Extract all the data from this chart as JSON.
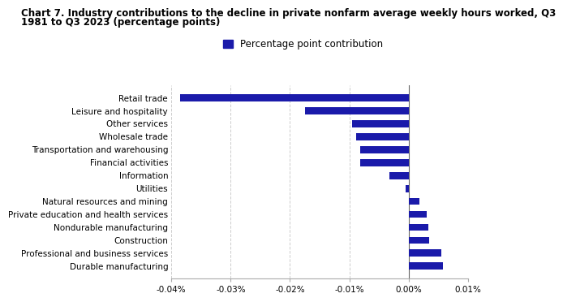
{
  "title_line1": "Chart 7. Industry contributions to the decline in private nonfarm average weekly hours worked, Q3",
  "title_line2": "1981 to Q3 2023 (percentage points)",
  "legend_label": "Percentage point contribution",
  "categories": [
    "Retail trade",
    "Leisure and hospitality",
    "Other services",
    "Wholesale trade",
    "Transportation and warehousing",
    "Financial activities",
    "Information",
    "Utilities",
    "Natural resources and mining",
    "Private education and health services",
    "Nondurable manufacturing",
    "Construction",
    "Professional and business services",
    "Durable manufacturing"
  ],
  "values": [
    -0.0385,
    -0.0175,
    -0.0095,
    -0.0088,
    -0.0082,
    -0.0082,
    -0.0032,
    -0.0005,
    0.0018,
    0.003,
    0.0033,
    0.0035,
    0.0055,
    0.0058
  ],
  "bar_color": "#1a1aaa",
  "xlim": [
    -0.04,
    0.01
  ],
  "xticks": [
    -0.04,
    -0.03,
    -0.02,
    -0.01,
    0.0,
    0.01
  ],
  "xtick_labels": [
    "-0.04%",
    "-0.03%",
    "-0.02%",
    "-0.01%",
    "0.00%",
    "0.01%"
  ],
  "background_color": "#ffffff",
  "grid_color": "#c8c8c8",
  "title_fontsize": 8.5,
  "tick_fontsize": 7.5,
  "legend_fontsize": 8.5,
  "bar_height": 0.55
}
